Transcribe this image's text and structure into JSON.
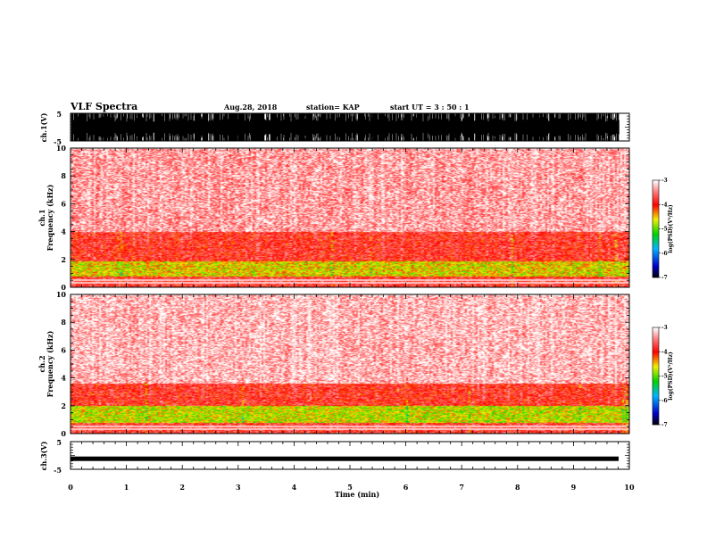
{
  "header": {
    "title": "VLF Spectra",
    "date": "Aug.28, 2018",
    "station": "station= KAP",
    "start": "start  UT =  3 : 50 : 1"
  },
  "chart_data": [
    {
      "type": "line",
      "name": "ch1-waveform",
      "ylabel": "ch.1(V)",
      "ylim": [
        -5,
        5
      ],
      "yticks": [
        "5",
        "-5"
      ],
      "xlim": [
        0,
        10
      ],
      "description_of_data": "dense saturated waveform spanning full range"
    },
    {
      "type": "heatmap",
      "name": "ch1-spectrogram",
      "ylabel": "ch.1\nFrequency (kHz)",
      "ylabel_lines": [
        "ch.1",
        "Frequency (kHz)"
      ],
      "ylim": [
        0,
        10
      ],
      "yticks": [
        "0",
        "2",
        "4",
        "6",
        "8",
        "10"
      ],
      "xlim": [
        0,
        10
      ],
      "colorbar": {
        "label": "log(PSD)(V²/Hz)",
        "range": [
          -7,
          -3
        ],
        "ticks": [
          "-3",
          "-4",
          "-5",
          "-6",
          "-7"
        ]
      },
      "bands_khz": [
        {
          "from": 0,
          "to": 0.8,
          "level": -3.8
        },
        {
          "from": 0.8,
          "to": 1.9,
          "level": -4.6
        },
        {
          "from": 1.9,
          "to": 4.0,
          "level": -3.9
        },
        {
          "from": 4.0,
          "to": 10,
          "level": -3.4
        }
      ]
    },
    {
      "type": "heatmap",
      "name": "ch2-spectrogram",
      "ylabel": "ch.2\nFrequency (kHz)",
      "ylabel_lines": [
        "ch.2",
        "Frequency (kHz)"
      ],
      "ylim": [
        0,
        10
      ],
      "yticks": [
        "0",
        "2",
        "4",
        "6",
        "8",
        "10"
      ],
      "xlim": [
        0,
        10
      ],
      "colorbar": {
        "label": "log(PSD)(V²/Hz)",
        "range": [
          -7,
          -3
        ],
        "ticks": [
          "-3",
          "-4",
          "-5",
          "-6",
          "-7"
        ]
      },
      "bands_khz": [
        {
          "from": 0,
          "to": 0.8,
          "level": -3.8
        },
        {
          "from": 0.8,
          "to": 2.0,
          "level": -4.7
        },
        {
          "from": 2.0,
          "to": 3.6,
          "level": -3.9
        },
        {
          "from": 3.6,
          "to": 10,
          "level": -3.3
        }
      ]
    },
    {
      "type": "line",
      "name": "ch3-waveform",
      "ylabel": "ch.3(V)",
      "ylim": [
        -5,
        5
      ],
      "yticks": [
        "5",
        "-5"
      ],
      "xlim": [
        0,
        10
      ],
      "value_v": -1.2
    }
  ],
  "xaxis": {
    "label": "Time (min)",
    "ticks": [
      "0",
      "1",
      "2",
      "3",
      "4",
      "5",
      "6",
      "7",
      "8",
      "9",
      "10"
    ]
  }
}
